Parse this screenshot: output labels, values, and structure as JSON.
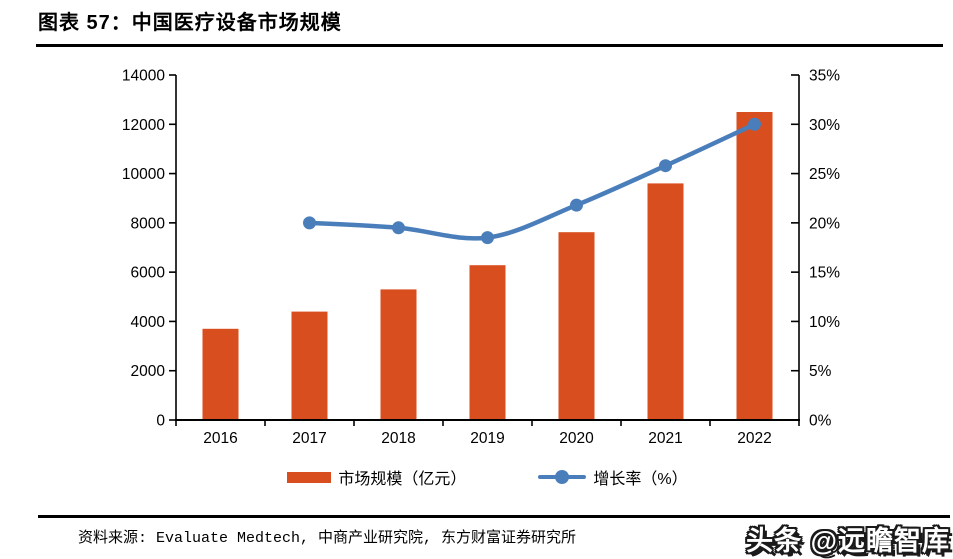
{
  "page": {
    "title": "图表 57：中国医疗设备市场规模",
    "source": "资料来源: Evaluate Medtech, 中商产业研究院, 东方财富证券研究所",
    "watermark": "头条 @远瞻智库"
  },
  "chart_data": {
    "type": "combo",
    "title": "中国医疗设备市场规模",
    "categories": [
      "2016",
      "2017",
      "2018",
      "2019",
      "2020",
      "2021",
      "2022"
    ],
    "series": [
      {
        "name": "市场规模（亿元）",
        "type": "bar",
        "axis": "left",
        "color": "#D94E1E",
        "values": [
          3700,
          4400,
          5300,
          6280,
          7620,
          9600,
          12500
        ]
      },
      {
        "name": "增长率（%）",
        "type": "line",
        "axis": "right",
        "color": "#4A7EBB",
        "values": [
          null,
          20,
          19.5,
          18.5,
          21.8,
          25.8,
          30
        ]
      }
    ],
    "left_axis": {
      "min": 0,
      "max": 14000,
      "step": 2000
    },
    "right_axis": {
      "min": 0,
      "max": 35,
      "step": 5,
      "suffix": "%"
    },
    "grid": false,
    "legend_position": "bottom",
    "axis_color": "#000000",
    "background": "#FFFFFF"
  }
}
